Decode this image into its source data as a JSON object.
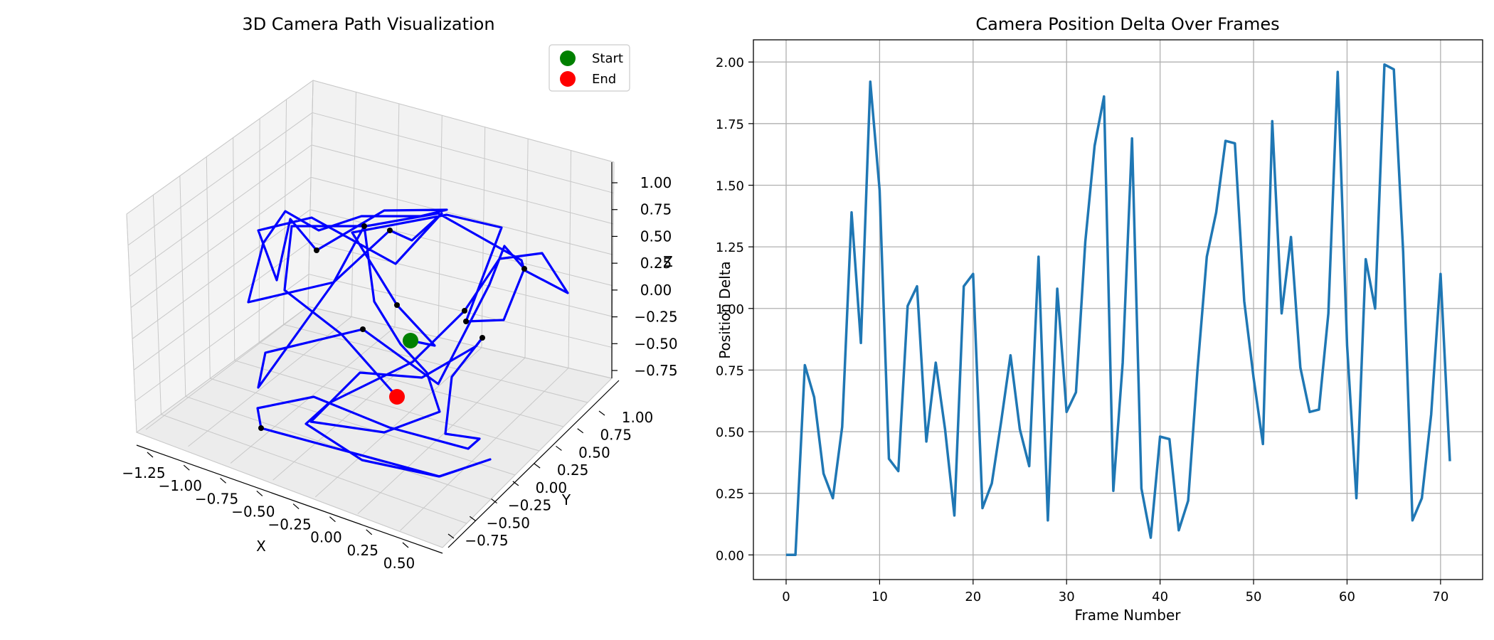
{
  "chart_data": [
    {
      "type": "line3d",
      "title": "3D Camera Path Visualization",
      "xlabel": "X",
      "ylabel": "Y",
      "zlabel": "Z",
      "x_ticks": [
        "−1.25",
        "−1.00",
        "−0.75",
        "−0.50",
        "−0.25",
        "0.00",
        "0.25",
        "0.50"
      ],
      "y_ticks": [
        "−0.75",
        "−0.50",
        "−0.25",
        "0.00",
        "0.25",
        "0.50",
        "0.75",
        "1.00"
      ],
      "z_ticks": [
        "−0.75",
        "−0.50",
        "−0.25",
        "0.00",
        "0.25",
        "0.50",
        "0.75",
        "1.00"
      ],
      "legend": [
        {
          "label": "Start",
          "color": "#008000"
        },
        {
          "label": "End",
          "color": "#ff0000"
        }
      ],
      "legend_position": "top-right",
      "path_color": "#0000ff",
      "keyframe_color": "#000000"
    },
    {
      "type": "line",
      "title": "Camera Position Delta Over Frames",
      "xlabel": "Frame Number",
      "ylabel": "Position Delta",
      "xlim": [
        -3.5,
        74.5
      ],
      "ylim": [
        -0.1,
        2.09
      ],
      "x_ticks": [
        0,
        10,
        20,
        30,
        40,
        50,
        60,
        70
      ],
      "y_ticks": [
        "0.00",
        "0.25",
        "0.50",
        "0.75",
        "1.00",
        "1.25",
        "1.50",
        "1.75",
        "2.00"
      ],
      "y_tick_values": [
        0,
        0.25,
        0.5,
        0.75,
        1.0,
        1.25,
        1.5,
        1.75,
        2.0
      ],
      "grid": true,
      "color": "#1f77b4",
      "x": [
        0,
        1,
        2,
        3,
        4,
        5,
        6,
        7,
        8,
        9,
        10,
        11,
        12,
        13,
        14,
        15,
        16,
        17,
        18,
        19,
        20,
        21,
        22,
        23,
        24,
        25,
        26,
        27,
        28,
        29,
        30,
        31,
        32,
        33,
        34,
        35,
        36,
        37,
        38,
        39,
        40,
        41,
        42,
        43,
        44,
        45,
        46,
        47,
        48,
        49,
        50,
        51,
        52,
        53,
        54,
        55,
        56,
        57,
        58,
        59,
        60,
        61,
        62,
        63,
        64,
        65,
        66,
        67,
        68,
        69,
        70,
        71
      ],
      "y": [
        0.0,
        0.0,
        0.77,
        0.64,
        0.33,
        0.23,
        0.52,
        1.39,
        0.86,
        1.92,
        1.48,
        0.39,
        0.34,
        1.01,
        1.09,
        0.46,
        0.78,
        0.51,
        0.16,
        1.09,
        1.14,
        0.19,
        0.29,
        0.54,
        0.81,
        0.51,
        0.36,
        1.21,
        0.14,
        1.08,
        0.58,
        0.66,
        1.27,
        1.66,
        1.86,
        0.26,
        0.78,
        1.69,
        0.27,
        0.07,
        0.48,
        0.47,
        0.1,
        0.22,
        0.75,
        1.21,
        1.39,
        1.68,
        1.67,
        1.03,
        0.72,
        0.45,
        1.76,
        0.98,
        1.29,
        0.76,
        0.58,
        0.59,
        0.98,
        1.96,
        0.85,
        0.23,
        1.2,
        1.0,
        1.99,
        1.97,
        1.23,
        0.14,
        0.23,
        0.57,
        1.14,
        0.38
      ]
    }
  ]
}
